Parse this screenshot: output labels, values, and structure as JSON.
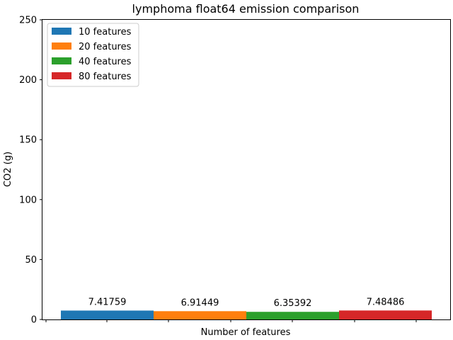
{
  "chart_data": {
    "type": "bar",
    "title": "lymphoma float64 emission comparison",
    "xlabel": "Number of features",
    "ylabel": "CO2 (g)",
    "ylim": [
      0,
      250
    ],
    "yticks": [
      0,
      50,
      100,
      150,
      200,
      250
    ],
    "grid": false,
    "legend_position": "top-left",
    "series": [
      {
        "name": "10 features",
        "value": 7.41759,
        "label": "7.41759",
        "color": "#1f77b4"
      },
      {
        "name": "20 features",
        "value": 6.91449,
        "label": "6.91449",
        "color": "#ff7f0e"
      },
      {
        "name": "40 features",
        "value": 6.35392,
        "label": "6.35392",
        "color": "#2ca02c"
      },
      {
        "name": "80 features",
        "value": 7.48486,
        "label": "7.48486",
        "color": "#d62728"
      }
    ]
  }
}
